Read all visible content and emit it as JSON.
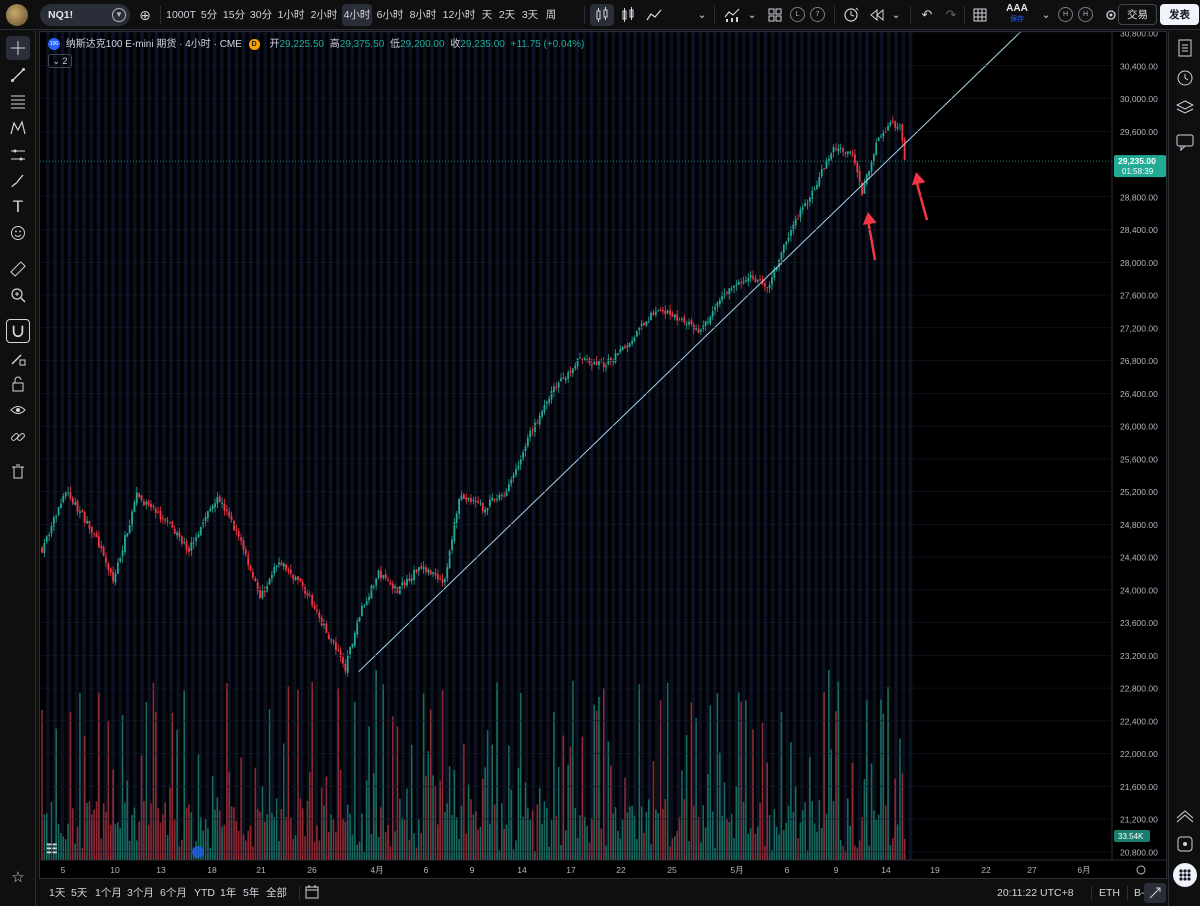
{
  "toolbar": {
    "symbol": "NQ1!",
    "intervals": [
      "1000T",
      "5分",
      "15分",
      "30分",
      "1小时",
      "2小时",
      "4小时",
      "6小时",
      "8小时",
      "12小时",
      "天",
      "2天",
      "3天",
      "周"
    ],
    "active_interval": "4小时",
    "badges": [
      "L",
      "7",
      "H",
      "H"
    ],
    "save_title": "AAA",
    "save_sub": "保存",
    "trade_label": "交易",
    "publish_label": "发表"
  },
  "legend": {
    "logo_text": "100",
    "title": "纳斯达克100 E-mini 期货 · 4小时 · CME",
    "data_logo": "D",
    "open_label": "开",
    "open": "29,225.50",
    "high_label": "高",
    "high": "29,375.50",
    "low_label": "低",
    "low": "29,200.00",
    "close_label": "收",
    "close": "29,235.00",
    "change": "+11.75 (+0.04%)",
    "collapse_label": "2"
  },
  "price_axis": {
    "labels": [
      "30,800.00",
      "30,400.00",
      "30,000.00",
      "29,600.00",
      "28,800.00",
      "28,400.00",
      "28,000.00",
      "27,600.00",
      "27,200.00",
      "26,800.00",
      "26,400.00",
      "26,000.00",
      "25,600.00",
      "25,200.00",
      "24,800.00",
      "24,400.00",
      "24,000.00",
      "23,600.00",
      "23,200.00",
      "22,800.00",
      "22,400.00",
      "22,000.00",
      "21,600.00",
      "21,200.00",
      "20,800.00"
    ],
    "last_price": "29,235.00",
    "countdown": "01:58:39",
    "volume_badge": "33.54K"
  },
  "time_axis": {
    "labels": [
      "5",
      "10",
      "13",
      "18",
      "21",
      "26",
      "4月",
      "6",
      "9",
      "14",
      "17",
      "22",
      "25",
      "5月",
      "6",
      "9",
      "14",
      "19",
      "22",
      "27",
      "6月"
    ]
  },
  "bottom": {
    "ranges": [
      "1天",
      "5天",
      "1个月",
      "3个月",
      "6个月",
      "YTD",
      "1年",
      "5年",
      "全部"
    ],
    "clock": "20:11:22 UTC+8",
    "session": "ETH",
    "adj": "B-ADJ"
  },
  "colors": {
    "up": "#22ab94",
    "down": "#f23645",
    "trendline": "#a8d2e8",
    "arrow": "#f23645",
    "last_price_bg": "#22ab94",
    "background": "#000000"
  },
  "chart_data": {
    "type": "candlestick",
    "symbol": "NQ1!",
    "interval": "4小时",
    "price_ylim": [
      20700,
      30800
    ],
    "ohlc_last": {
      "open": 29225.5,
      "high": 29375.5,
      "low": 29200.0,
      "close": 29235.0
    },
    "anchors": [
      {
        "t": 0,
        "p": 24500
      },
      {
        "t": 10,
        "p": 25200
      },
      {
        "t": 22,
        "p": 24700
      },
      {
        "t": 30,
        "p": 24100
      },
      {
        "t": 40,
        "p": 25150
      },
      {
        "t": 52,
        "p": 24850
      },
      {
        "t": 62,
        "p": 24500
      },
      {
        "t": 74,
        "p": 25150
      },
      {
        "t": 84,
        "p": 24600
      },
      {
        "t": 92,
        "p": 23900
      },
      {
        "t": 100,
        "p": 24350
      },
      {
        "t": 110,
        "p": 24050
      },
      {
        "t": 118,
        "p": 23600
      },
      {
        "t": 128,
        "p": 23050
      },
      {
        "t": 134,
        "p": 23700
      },
      {
        "t": 142,
        "p": 24200
      },
      {
        "t": 150,
        "p": 24000
      },
      {
        "t": 160,
        "p": 24300
      },
      {
        "t": 170,
        "p": 24100
      },
      {
        "t": 176,
        "p": 25150
      },
      {
        "t": 186,
        "p": 25000
      },
      {
        "t": 196,
        "p": 25200
      },
      {
        "t": 206,
        "p": 25900
      },
      {
        "t": 216,
        "p": 26450
      },
      {
        "t": 226,
        "p": 26800
      },
      {
        "t": 238,
        "p": 26750
      },
      {
        "t": 250,
        "p": 27100
      },
      {
        "t": 260,
        "p": 27450
      },
      {
        "t": 270,
        "p": 27300
      },
      {
        "t": 278,
        "p": 27150
      },
      {
        "t": 288,
        "p": 27600
      },
      {
        "t": 298,
        "p": 27850
      },
      {
        "t": 306,
        "p": 27700
      },
      {
        "t": 316,
        "p": 28400
      },
      {
        "t": 324,
        "p": 28800
      },
      {
        "t": 334,
        "p": 29400
      },
      {
        "t": 342,
        "p": 29350
      },
      {
        "t": 346,
        "p": 28850
      },
      {
        "t": 352,
        "p": 29450
      },
      {
        "t": 358,
        "p": 29700
      },
      {
        "t": 362,
        "p": 29650
      },
      {
        "t": 364,
        "p": 29235
      }
    ],
    "trendline": [
      {
        "t": 134,
        "p": 23000
      },
      {
        "t": 420,
        "p": 31000
      }
    ],
    "annotations": [
      "arrow-touch-1",
      "arrow-touch-2"
    ]
  }
}
